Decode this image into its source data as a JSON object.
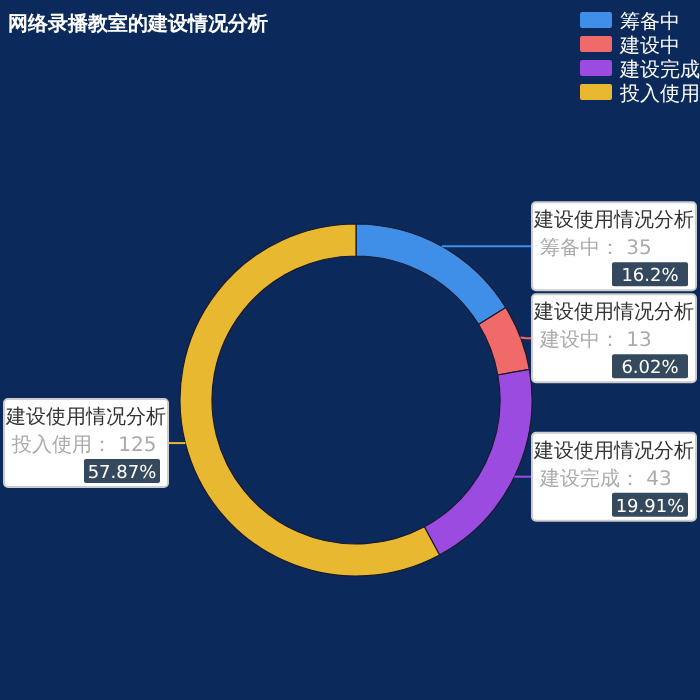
{
  "chart_data": {
    "type": "donut",
    "title": "网络录播教室的建设情况分析",
    "categories": [
      "筹备中",
      "建设中",
      "建设完成",
      "投入使用"
    ],
    "series": [
      {
        "name": "建设使用情况分析",
        "values": [
          35,
          13,
          43,
          125
        ],
        "colors": [
          "#3f8fe8",
          "#f06a6a",
          "#9b4be0",
          "#e8b830"
        ],
        "value_labels": [
          "筹备中： 35",
          "建设中： 13",
          "建设完成： 43",
          "投入使用： 125"
        ]
      }
    ],
    "annotations": [
      "16.2%",
      "6.02%",
      "19.91%",
      "57.87%"
    ],
    "legend": "top right"
  }
}
